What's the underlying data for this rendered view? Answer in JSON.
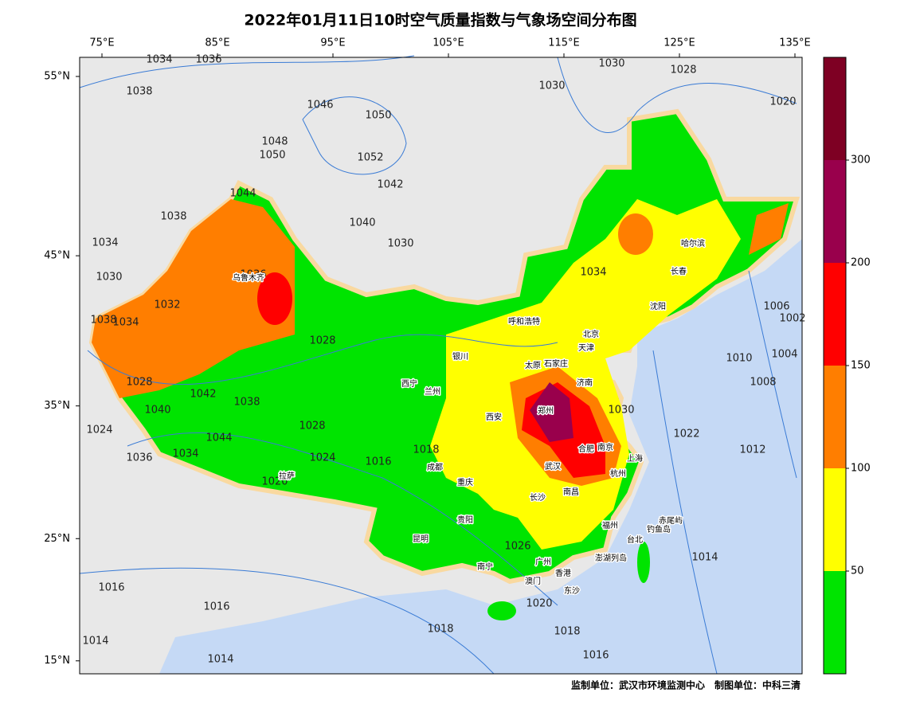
{
  "title": "2022年01月11日10时空气质量指数与气象场空间分布图",
  "lon_ticks": [
    {
      "value": 75,
      "label": "75°E"
    },
    {
      "value": 85,
      "label": "85°E"
    },
    {
      "value": 95,
      "label": "95°E"
    },
    {
      "value": 105,
      "label": "105°E"
    },
    {
      "value": 115,
      "label": "115°E"
    },
    {
      "value": 125,
      "label": "125°E"
    },
    {
      "value": 135,
      "label": "135°E"
    }
  ],
  "lat_ticks": [
    {
      "value": 55,
      "label": "55°N"
    },
    {
      "value": 45,
      "label": "45°N"
    },
    {
      "value": 35,
      "label": "35°N"
    },
    {
      "value": 25,
      "label": "25°N"
    },
    {
      "value": 15,
      "label": "15°N"
    }
  ],
  "colorbar": {
    "colors": [
      "#00e400",
      "#ffff00",
      "#ff7e00",
      "#ff0000",
      "#99004c",
      "#7e0023"
    ],
    "ticks": [
      50,
      100,
      150,
      200,
      300
    ]
  },
  "cities": [
    "乌鲁木齐",
    "呼和浩特",
    "北京",
    "天津",
    "银川",
    "太原",
    "石家庄",
    "西宁",
    "兰州",
    "济南",
    "郑州",
    "西安",
    "合肥",
    "南京",
    "上海",
    "成都",
    "武汉",
    "杭州",
    "重庆",
    "南昌",
    "拉萨",
    "长沙",
    "贵阳",
    "福州",
    "赤尾屿",
    "钓鱼岛",
    "昆明",
    "台北",
    "澎湖列岛",
    "南宁",
    "广州",
    "香港",
    "澳门",
    "东沙",
    "哈尔滨",
    "长春",
    "沈阳"
  ],
  "isobar_labels": [
    "1034",
    "1036",
    "1038",
    "1046",
    "1050",
    "1048",
    "1050",
    "1052",
    "1042",
    "1044",
    "1038",
    "1034",
    "1040",
    "1030",
    "1030",
    "1032",
    "1038",
    "1034",
    "1036",
    "1028",
    "1028",
    "1042",
    "1040",
    "1038",
    "1044",
    "1028",
    "1034",
    "1024",
    "1036",
    "1024",
    "1016",
    "1020",
    "1018",
    "1030",
    "1028",
    "1030",
    "1020",
    "1034",
    "1006",
    "1002",
    "1004",
    "1010",
    "1008",
    "1030",
    "1022",
    "1012",
    "1026",
    "1020",
    "1014",
    "1018",
    "1018",
    "1016",
    "1016",
    "1016",
    "1014",
    "1014"
  ],
  "footer": "监制单位：武汉市环境监测中心　制图单位：中科三清"
}
